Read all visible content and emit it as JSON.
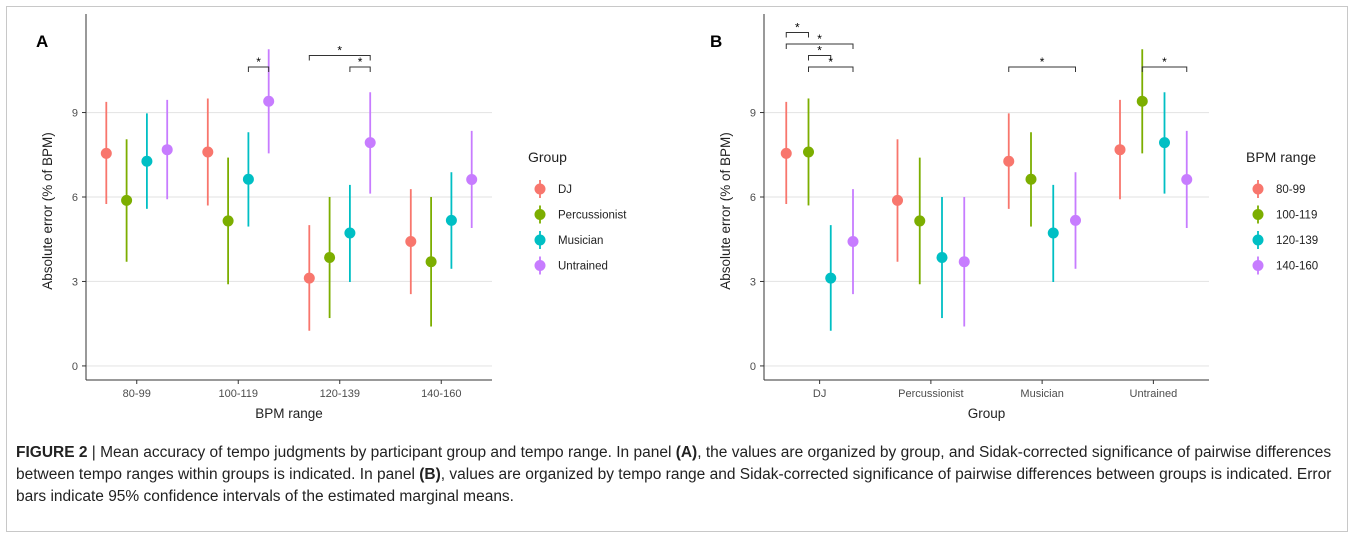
{
  "colors": {
    "red": "#F8766D",
    "green": "#7CAE00",
    "teal": "#00BFC4",
    "purple": "#C77CFF",
    "grid": "#e6e6e6",
    "axis": "#333333"
  },
  "chart_data": [
    {
      "panel": "A",
      "type": "pointrange",
      "xlabel": "BPM range",
      "ylabel": "Absolute error (% of BPM)",
      "ylim": [
        -0.5,
        12.5
      ],
      "yticks": [
        0,
        3,
        6,
        9
      ],
      "categories": [
        "80-99",
        "100-119",
        "120-139",
        "140-160"
      ],
      "legend_title": "Group",
      "legend_position": "right",
      "series": [
        {
          "name": "DJ",
          "color": "#F8766D",
          "values": [
            7.55,
            7.6,
            3.12,
            4.42
          ],
          "lower": [
            5.75,
            5.7,
            1.25,
            2.55
          ],
          "upper": [
            9.38,
            9.5,
            5.0,
            6.28
          ]
        },
        {
          "name": "Percussionist",
          "color": "#7CAE00",
          "values": [
            5.88,
            5.15,
            3.85,
            3.7
          ],
          "lower": [
            3.7,
            2.9,
            1.7,
            1.4
          ],
          "upper": [
            8.05,
            7.4,
            6.0,
            6.0
          ]
        },
        {
          "name": "Musician",
          "color": "#00BFC4",
          "values": [
            7.27,
            6.63,
            4.72,
            5.17
          ],
          "lower": [
            5.58,
            4.95,
            2.98,
            3.45
          ],
          "upper": [
            8.97,
            8.3,
            6.43,
            6.88
          ]
        },
        {
          "name": "Untrained",
          "color": "#C77CFF",
          "values": [
            7.68,
            9.4,
            7.93,
            6.62
          ],
          "lower": [
            5.92,
            7.55,
            6.12,
            4.9
          ],
          "upper": [
            9.45,
            11.25,
            9.72,
            8.35
          ]
        }
      ],
      "significance": [
        {
          "category": 1,
          "from": 2,
          "to": 3,
          "level": 0,
          "label": "*"
        },
        {
          "category": 2,
          "from": 2,
          "to": 3,
          "level": 0,
          "label": "*"
        },
        {
          "category": 2,
          "from": 0,
          "to": 3,
          "level": 1,
          "label": "*"
        }
      ]
    },
    {
      "panel": "B",
      "type": "pointrange",
      "xlabel": "Group",
      "ylabel": "Absolute error (% of BPM)",
      "ylim": [
        -0.5,
        12.5
      ],
      "yticks": [
        0,
        3,
        6,
        9
      ],
      "categories": [
        "DJ",
        "Percussionist",
        "Musician",
        "Untrained"
      ],
      "legend_title": "BPM range",
      "legend_position": "right",
      "series": [
        {
          "name": "80-99",
          "color": "#F8766D",
          "values": [
            7.55,
            5.88,
            7.27,
            7.68
          ],
          "lower": [
            5.75,
            3.7,
            5.58,
            5.92
          ],
          "upper": [
            9.38,
            8.05,
            8.97,
            9.45
          ]
        },
        {
          "name": "100-119",
          "color": "#7CAE00",
          "values": [
            7.6,
            5.15,
            6.63,
            9.4
          ],
          "lower": [
            5.7,
            2.9,
            4.95,
            7.55
          ],
          "upper": [
            9.5,
            7.4,
            8.3,
            11.25
          ]
        },
        {
          "name": "120-139",
          "color": "#00BFC4",
          "values": [
            3.12,
            3.85,
            4.72,
            7.93
          ],
          "lower": [
            1.25,
            1.7,
            2.98,
            6.12
          ],
          "upper": [
            5.0,
            6.0,
            6.43,
            9.72
          ]
        },
        {
          "name": "140-160",
          "color": "#C77CFF",
          "values": [
            4.42,
            3.7,
            5.17,
            6.62
          ],
          "lower": [
            2.55,
            1.4,
            3.45,
            4.9
          ],
          "upper": [
            6.28,
            6.0,
            6.88,
            8.35
          ]
        }
      ],
      "significance": [
        {
          "category": 0,
          "from": 0,
          "to": 1,
          "level": 3,
          "label": "*"
        },
        {
          "category": 0,
          "from": 0,
          "to": 3,
          "level": 2,
          "label": "*"
        },
        {
          "category": 0,
          "from": 1,
          "to": 2,
          "level": 1,
          "label": "*"
        },
        {
          "category": 0,
          "from": 1,
          "to": 3,
          "level": 0,
          "label": "*"
        },
        {
          "category": 2,
          "from": 0,
          "to": 3,
          "level": 0,
          "label": "*"
        },
        {
          "category": 3,
          "from": 1,
          "to": 3,
          "level": 0,
          "label": "*"
        }
      ]
    }
  ],
  "caption": {
    "figure_label": "FIGURE 2",
    "separator": " | ",
    "text_1": "Mean accuracy of tempo judgments by participant group and tempo range. In panel ",
    "ref_a": "(A)",
    "text_2": ", the values are organized by group, and Sidak-corrected significance of pairwise differences between tempo ranges within groups is indicated. In panel ",
    "ref_b": "(B)",
    "text_3": ", values are organized by tempo range and Sidak-corrected significance of pairwise differences between groups is indicated. Error bars indicate 95% confidence intervals of the estimated marginal means."
  }
}
